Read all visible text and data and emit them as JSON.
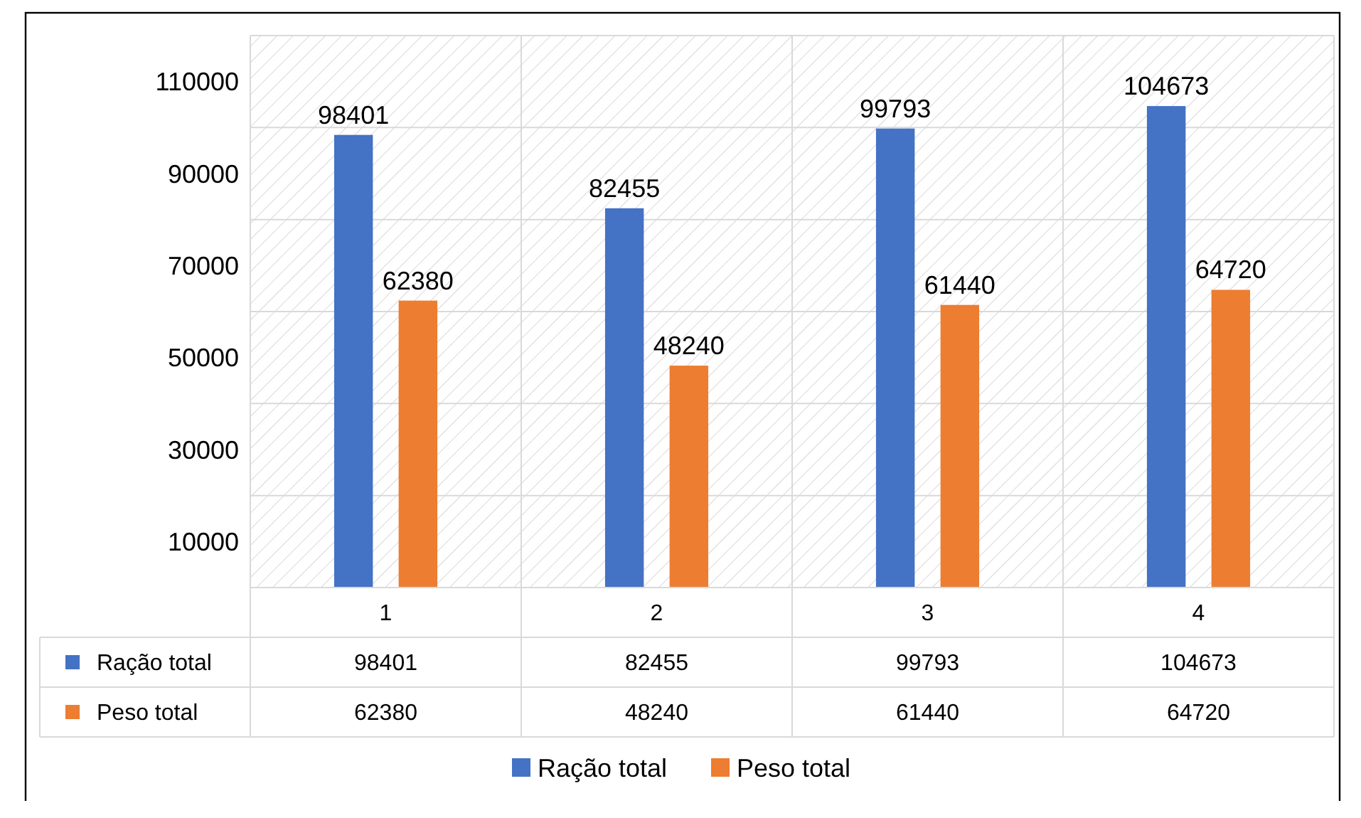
{
  "chart_data": {
    "type": "bar",
    "categories": [
      "1",
      "2",
      "3",
      "4"
    ],
    "series": [
      {
        "name": "Ração total",
        "color": "#4472c4",
        "values": [
          98401,
          82455,
          99793,
          104673
        ]
      },
      {
        "name": "Peso total",
        "color": "#ed7d31",
        "values": [
          62380,
          48240,
          61440,
          64720
        ]
      }
    ],
    "ylim": [
      0,
      120000
    ],
    "yticks": [
      10000,
      {
        "value": 20000,
        "label": null
      },
      30000,
      {
        "value": 40000,
        "label": null
      },
      50000,
      {
        "value": 60000,
        "label": null
      },
      70000,
      {
        "value": 80000,
        "label": null
      },
      90000,
      {
        "value": 100000,
        "label": null
      },
      110000,
      {
        "value": 120000,
        "label": null
      }
    ],
    "grid": true,
    "data_labels": true,
    "legend": "bottom",
    "annotations": [
      "98401",
      "82455",
      "99793",
      "104673",
      "62380",
      "48240",
      "61440",
      "64720"
    ]
  }
}
